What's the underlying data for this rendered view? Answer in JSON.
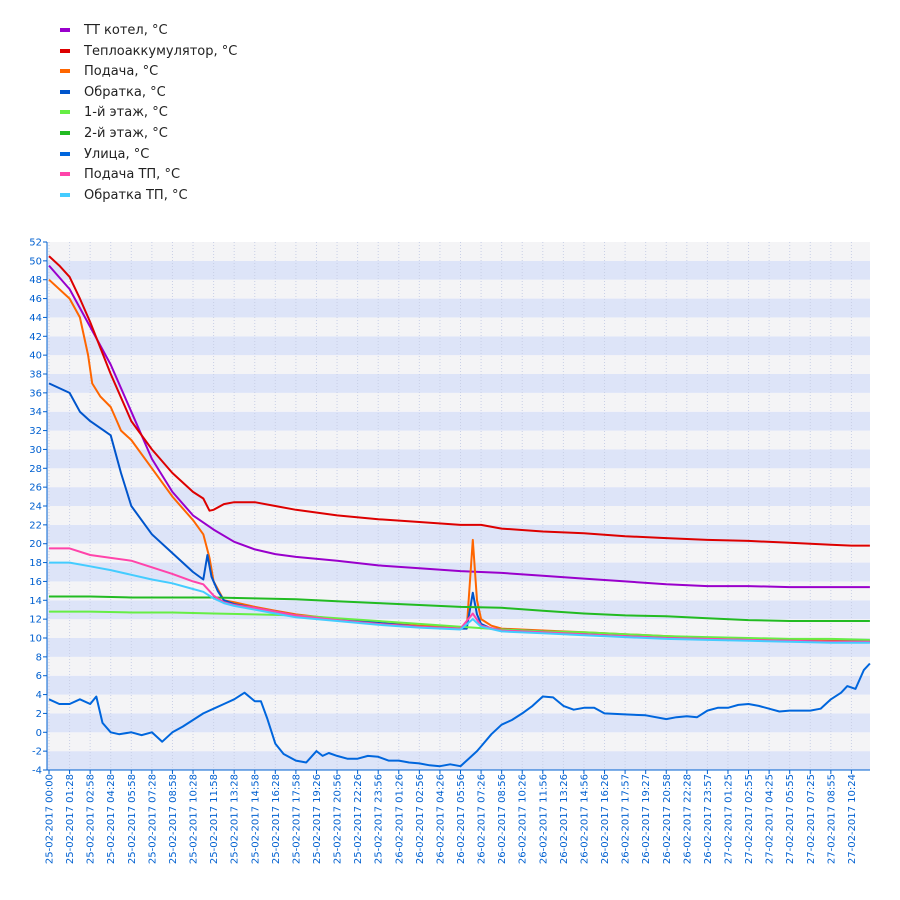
{
  "chart_data": {
    "type": "line",
    "y_ticks": [
      -4,
      -2,
      0,
      2,
      4,
      6,
      8,
      10,
      12,
      14,
      16,
      18,
      20,
      22,
      24,
      26,
      28,
      30,
      32,
      34,
      36,
      38,
      40,
      42,
      44,
      46,
      48,
      50,
      52
    ],
    "ylim": [
      -4,
      52
    ],
    "grid": true,
    "legend_position": "top-left",
    "x_labels": [
      "25-02-2017 00:00",
      "25-02-2017 01:28",
      "25-02-2017 02:58",
      "25-02-2017 04:28",
      "25-02-2017 05:58",
      "25-02-2017 07:28",
      "25-02-2017 08:58",
      "25-02-2017 10:28",
      "25-02-2017 11:58",
      "25-02-2017 13:28",
      "25-02-2017 14:58",
      "25-02-2017 16:28",
      "25-02-2017 17:58",
      "25-02-2017 19:26",
      "25-02-2017 20:56",
      "25-02-2017 22:26",
      "25-02-2017 23:56",
      "26-02-2017 01:26",
      "26-02-2017 02:56",
      "26-02-2017 04:26",
      "26-02-2017 05:56",
      "26-02-2017 07:26",
      "26-02-2017 08:56",
      "26-02-2017 10:26",
      "26-02-2017 11:56",
      "26-02-2017 13:26",
      "26-02-2017 14:56",
      "26-02-2017 16:26",
      "26-02-2017 17:57",
      "26-02-2017 19:27",
      "26-02-2017 20:58",
      "26-02-2017 22:28",
      "26-02-2017 23:57",
      "27-02-2017 01:25",
      "27-02-2017 02:55",
      "27-02-2017 04:25",
      "27-02-2017 05:55",
      "27-02-2017 07:25",
      "27-02-2017 08:55",
      "27-02-2017 10:24"
    ],
    "series": [
      {
        "name": "ТТ котел, °C",
        "color": "#9900cc",
        "x": [
          0,
          1,
          2,
          3,
          4,
          5,
          6,
          7,
          8,
          9,
          10,
          11,
          12,
          14,
          16,
          18,
          20,
          22,
          24,
          26,
          28,
          30,
          32,
          34,
          36,
          38,
          39,
          39.9
        ],
        "y": [
          49.5,
          47,
          43,
          39,
          34,
          29,
          25.5,
          23,
          21.5,
          20.2,
          19.4,
          18.9,
          18.6,
          18.2,
          17.7,
          17.4,
          17.1,
          16.9,
          16.6,
          16.3,
          16,
          15.7,
          15.5,
          15.5,
          15.4,
          15.4,
          15.4,
          15.4
        ]
      },
      {
        "name": "Теплоаккумулятор, °C",
        "color": "#dd0000",
        "x": [
          0,
          0.5,
          1,
          1.5,
          2,
          3,
          4,
          5,
          6,
          7,
          7.5,
          7.8,
          8,
          8.5,
          9,
          10,
          11,
          12,
          14,
          16,
          18,
          20,
          21,
          22,
          24,
          26,
          28,
          30,
          32,
          34,
          36,
          38,
          39,
          39.9
        ],
        "y": [
          50.5,
          49.5,
          48.3,
          46,
          43.5,
          38,
          33,
          30,
          27.5,
          25.5,
          24.8,
          23.5,
          23.6,
          24.2,
          24.4,
          24.4,
          24,
          23.6,
          23,
          22.6,
          22.3,
          22,
          22,
          21.6,
          21.3,
          21.1,
          20.8,
          20.6,
          20.4,
          20.3,
          20.1,
          19.9,
          19.8,
          19.8
        ]
      },
      {
        "name": "Подача, °C",
        "color": "#ff6600",
        "x": [
          0,
          1,
          1.5,
          1.9,
          2.1,
          2.5,
          3,
          3.3,
          3.5,
          4,
          5,
          6,
          7,
          7.5,
          7.8,
          8,
          8.5,
          9,
          10,
          11,
          12,
          14,
          16,
          18,
          20,
          20.3,
          20.6,
          20.8,
          21,
          21.5,
          22,
          24,
          26,
          28,
          30,
          32,
          34,
          36,
          38,
          39,
          39.9
        ],
        "y": [
          48,
          46,
          44,
          40,
          37,
          35.6,
          34.5,
          33,
          32,
          31,
          28,
          25,
          22.5,
          21,
          18.5,
          16,
          14,
          13.8,
          13.3,
          12.9,
          12.5,
          12,
          11.6,
          11.3,
          11.1,
          11,
          20.4,
          14,
          12,
          11.3,
          11,
          10.8,
          10.6,
          10.4,
          10.2,
          10,
          9.9,
          9.8,
          9.7,
          9.7,
          9.7
        ]
      },
      {
        "name": "Обратка, °C",
        "color": "#0055cc",
        "x": [
          0,
          1,
          1.5,
          2,
          3,
          3.5,
          4,
          5,
          6,
          7,
          7.5,
          7.7,
          7.9,
          8.2,
          8.5,
          9,
          10,
          11,
          12,
          14,
          16,
          18,
          20,
          20.3,
          20.6,
          20.8,
          21,
          21.5,
          22,
          24,
          26,
          28,
          30,
          32,
          34,
          36,
          38,
          39,
          39.9
        ],
        "y": [
          37,
          36,
          34,
          33,
          31.5,
          27.5,
          24,
          21,
          19,
          17,
          16.2,
          18.8,
          16.5,
          15,
          14,
          13.6,
          13.2,
          12.8,
          12.4,
          12,
          11.6,
          11.2,
          11,
          11,
          14.8,
          12.5,
          11.5,
          11,
          10.9,
          10.7,
          10.5,
          10.3,
          10.1,
          9.9,
          9.8,
          9.7,
          9.6,
          9.6,
          9.6
        ]
      },
      {
        "name": "1-й этаж, °C",
        "color": "#66ee44",
        "x": [
          0,
          2,
          4,
          6,
          8,
          10,
          12,
          14,
          16,
          18,
          20,
          22,
          24,
          26,
          28,
          30,
          32,
          34,
          36,
          38,
          39.9
        ],
        "y": [
          12.8,
          12.8,
          12.7,
          12.7,
          12.6,
          12.5,
          12.4,
          12.1,
          11.8,
          11.5,
          11.2,
          10.9,
          10.7,
          10.6,
          10.4,
          10.2,
          10.1,
          10,
          9.9,
          9.9,
          9.8
        ]
      },
      {
        "name": "2-й этаж, °C",
        "color": "#22bb22",
        "x": [
          0,
          2,
          4,
          6,
          8,
          10,
          12,
          14,
          16,
          18,
          20,
          22,
          24,
          26,
          28,
          30,
          32,
          34,
          36,
          38,
          39.9
        ],
        "y": [
          14.4,
          14.4,
          14.3,
          14.3,
          14.3,
          14.2,
          14.1,
          13.9,
          13.7,
          13.5,
          13.3,
          13.2,
          12.9,
          12.6,
          12.4,
          12.3,
          12.1,
          11.9,
          11.8,
          11.8,
          11.8
        ]
      },
      {
        "name": "Улица, °C",
        "color": "#0066dd",
        "x": [
          0,
          0.5,
          1,
          1.5,
          2,
          2.3,
          2.6,
          3,
          3.4,
          4,
          4.5,
          5,
          5.5,
          6,
          6.5,
          7,
          7.5,
          8,
          8.5,
          9,
          9.5,
          10,
          10.3,
          10.6,
          11,
          11.4,
          12,
          12.5,
          13,
          13.3,
          13.6,
          14,
          14.5,
          15,
          15.5,
          16,
          16.5,
          17,
          17.5,
          18,
          18.5,
          19,
          19.5,
          20,
          20.4,
          20.8,
          21,
          21.5,
          22,
          22.5,
          23,
          23.5,
          24,
          24.5,
          25,
          25.5,
          26,
          26.5,
          27,
          28,
          29,
          30,
          30.5,
          31,
          31.5,
          32,
          32.5,
          33,
          33.5,
          34,
          34.5,
          35,
          35.5,
          36,
          36.5,
          37,
          37.5,
          38,
          38.5,
          38.8,
          39.2,
          39.6,
          39.9
        ],
        "y": [
          3.5,
          3,
          3,
          3.5,
          3,
          3.8,
          1,
          0,
          -0.2,
          0,
          -0.3,
          0,
          -1,
          0,
          0.6,
          1.3,
          2,
          2.5,
          3,
          3.5,
          4.2,
          3.3,
          3.3,
          1.5,
          -1.2,
          -2.3,
          -3,
          -3.2,
          -2,
          -2.5,
          -2.2,
          -2.5,
          -2.8,
          -2.8,
          -2.5,
          -2.6,
          -3,
          -3,
          -3.2,
          -3.3,
          -3.5,
          -3.6,
          -3.4,
          -3.6,
          -2.8,
          -2,
          -1.5,
          -0.2,
          0.8,
          1.3,
          2,
          2.8,
          3.8,
          3.7,
          2.8,
          2.4,
          2.6,
          2.6,
          2,
          1.9,
          1.8,
          1.4,
          1.6,
          1.7,
          1.6,
          2.3,
          2.6,
          2.6,
          2.9,
          3,
          2.8,
          2.5,
          2.2,
          2.3,
          2.3,
          2.3,
          2.5,
          3.5,
          4.2,
          4.9,
          4.6,
          6.6,
          7.3
        ]
      },
      {
        "name": "Подача ТП, °C",
        "color": "#ff44aa",
        "x": [
          0,
          1,
          2,
          3,
          4,
          5,
          6,
          7,
          7.5,
          8,
          8.5,
          9,
          10,
          11,
          12,
          14,
          16,
          18,
          20,
          20.6,
          21,
          22,
          24,
          26,
          28,
          30,
          32,
          34,
          36,
          38,
          39,
          39.9
        ],
        "y": [
          19.5,
          19.5,
          18.8,
          18.5,
          18.2,
          17.5,
          16.8,
          16,
          15.7,
          14.5,
          13.8,
          13.5,
          13.2,
          12.8,
          12.4,
          11.9,
          11.5,
          11.2,
          11,
          12.6,
          11.3,
          10.8,
          10.6,
          10.4,
          10.2,
          10,
          9.9,
          9.8,
          9.7,
          9.6,
          9.6,
          9.6
        ]
      },
      {
        "name": "Обратка ТП, °C",
        "color": "#44ccff",
        "x": [
          0,
          1,
          2,
          3,
          4,
          5,
          6,
          7,
          7.5,
          8,
          8.5,
          9,
          10,
          11,
          12,
          14,
          16,
          18,
          20,
          20.6,
          21,
          22,
          24,
          26,
          28,
          30,
          32,
          34,
          36,
          38,
          39,
          39.9
        ],
        "y": [
          18,
          18,
          17.6,
          17.2,
          16.7,
          16.2,
          15.8,
          15.2,
          14.9,
          14.2,
          13.7,
          13.4,
          13,
          12.6,
          12.2,
          11.8,
          11.4,
          11.1,
          10.9,
          12,
          11.2,
          10.7,
          10.5,
          10.3,
          10.1,
          9.9,
          9.8,
          9.7,
          9.6,
          9.5,
          9.5,
          9.5
        ]
      }
    ]
  }
}
